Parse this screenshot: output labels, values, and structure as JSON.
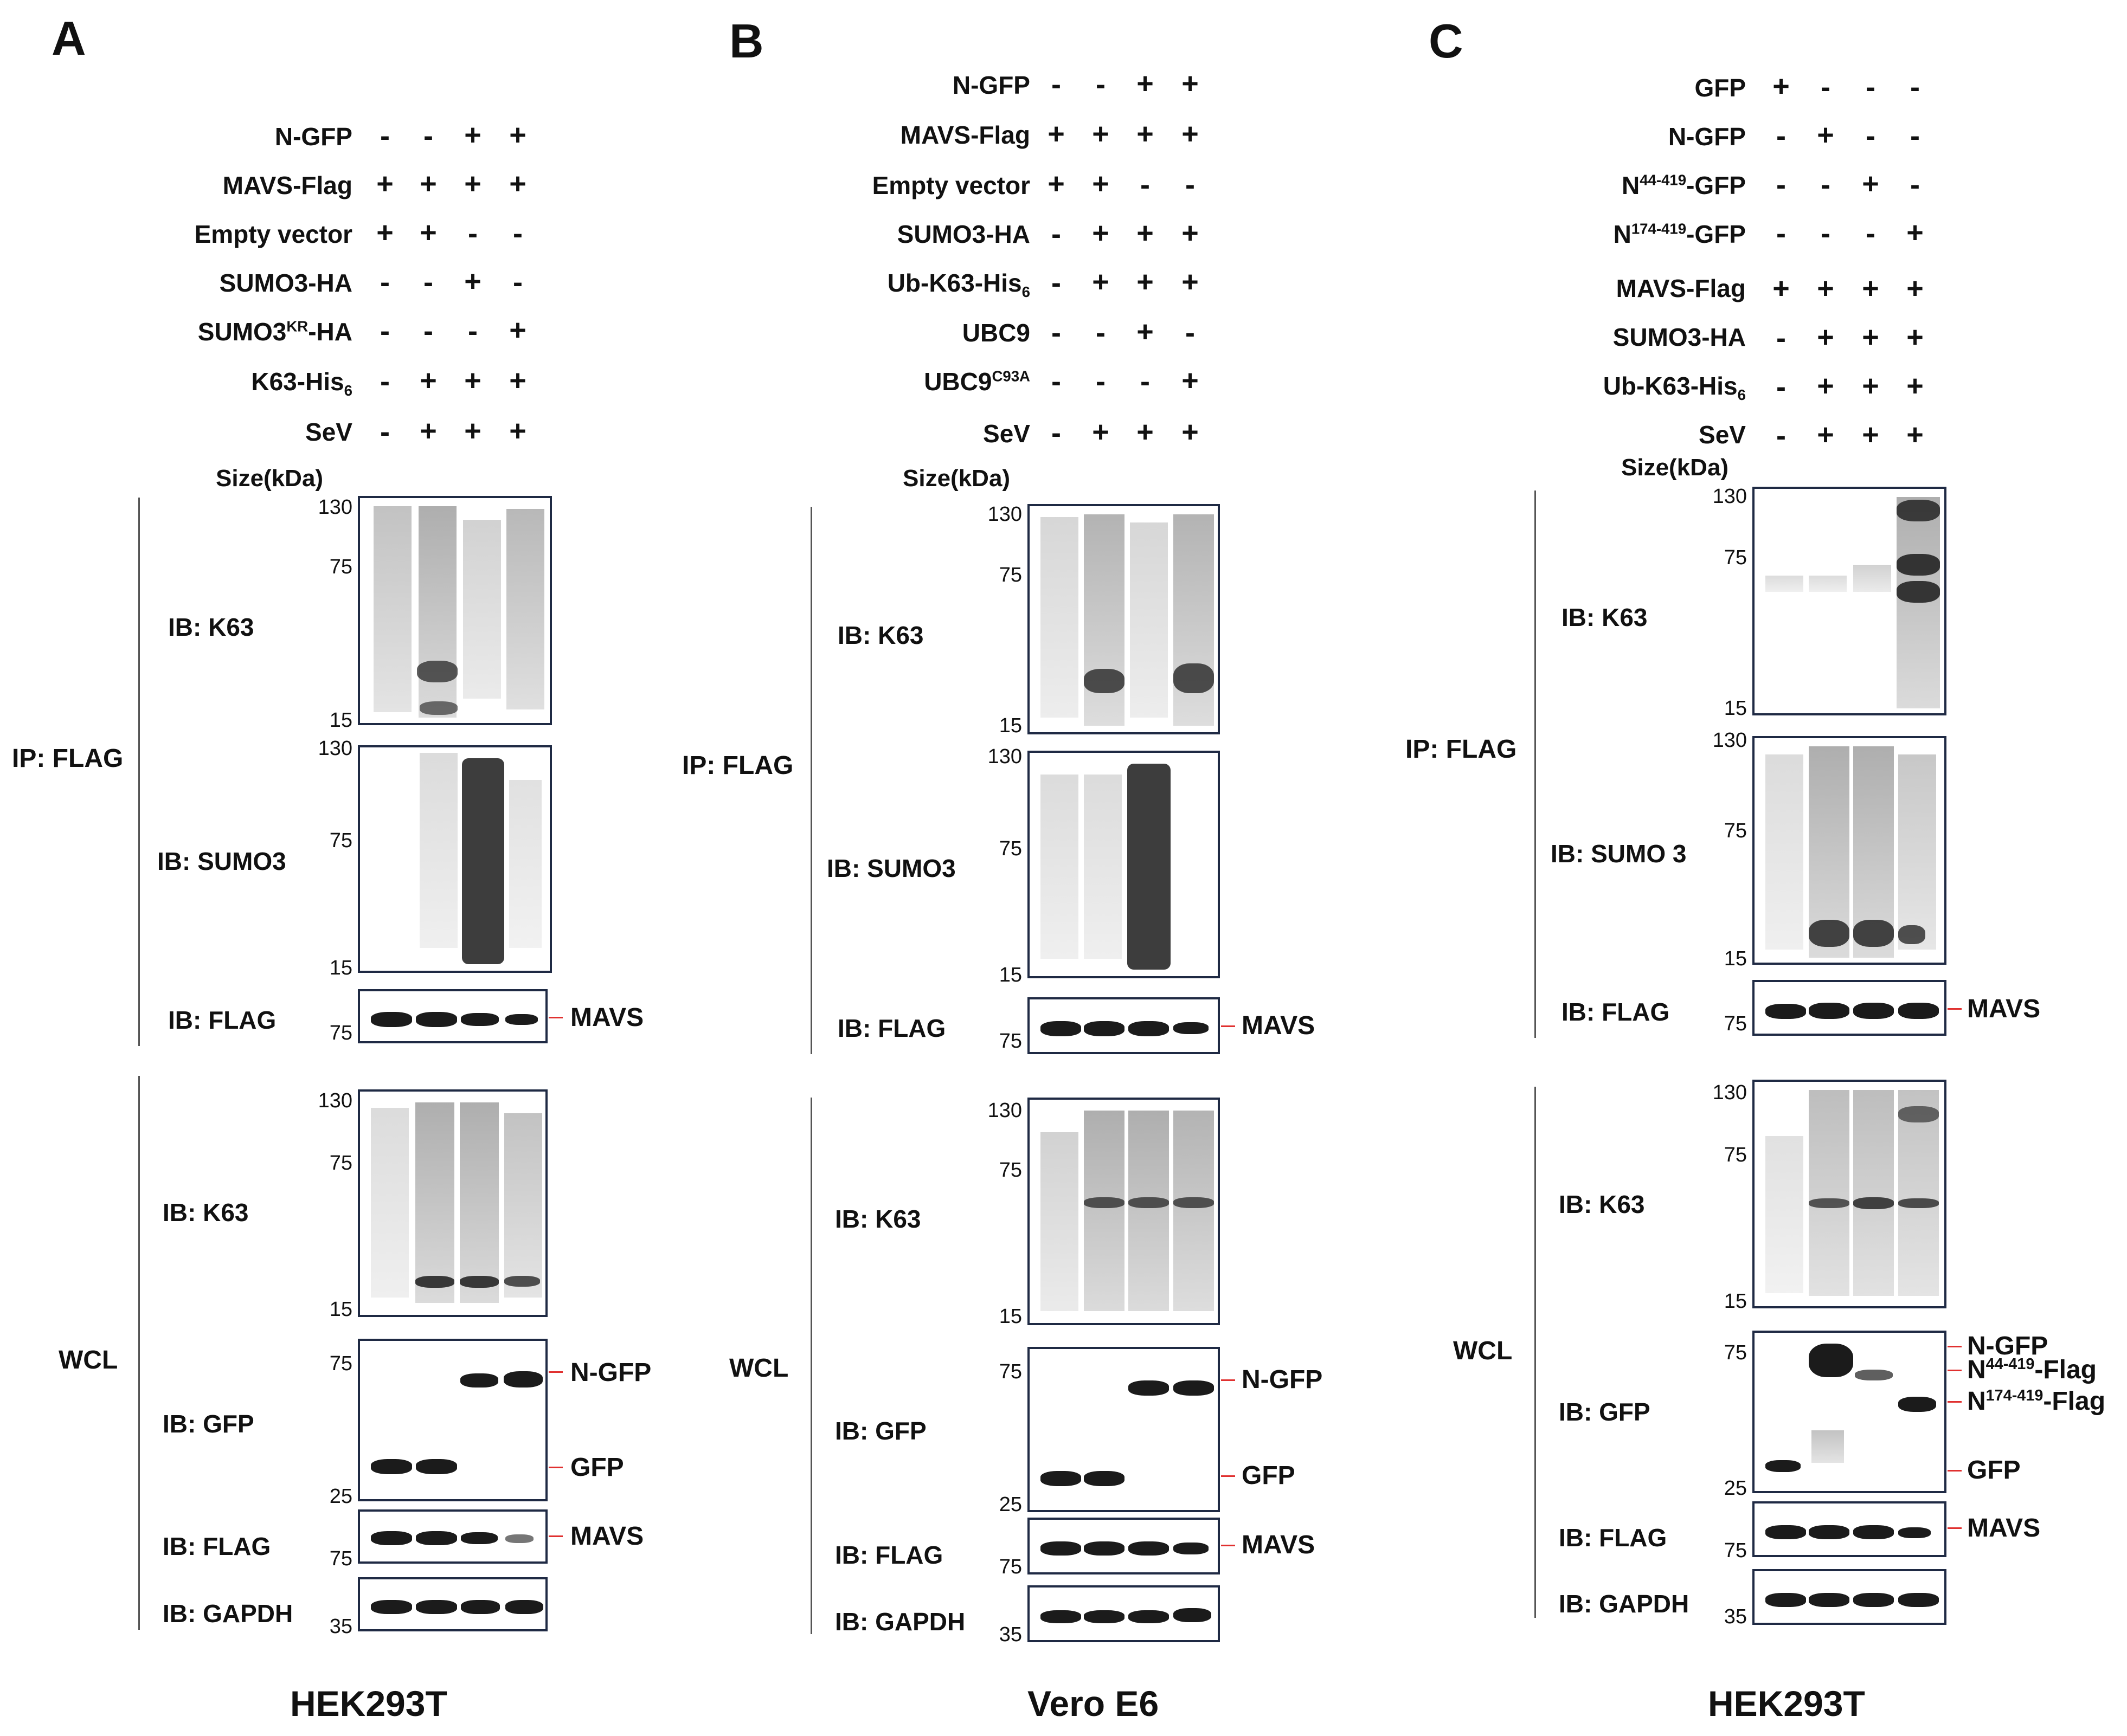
{
  "panels": {
    "A": {
      "letter": "A",
      "cell_line": "HEK293T",
      "conditions": [
        {
          "label": "N-GFP",
          "signs": [
            "-",
            "-",
            "+",
            "+"
          ]
        },
        {
          "label": "MAVS-Flag",
          "signs": [
            "+",
            "+",
            "+",
            "+"
          ]
        },
        {
          "label": "Empty vector",
          "signs": [
            "+",
            "+",
            "-",
            "-"
          ]
        },
        {
          "label": "SUMO3-HA",
          "signs": [
            "-",
            "-",
            "+",
            "-"
          ]
        },
        {
          "label": "SUMO3KR-HA",
          "signs": [
            "-",
            "-",
            "-",
            "+"
          ]
        },
        {
          "label": "K63-His6",
          "signs": [
            "-",
            "+",
            "+",
            "+"
          ]
        },
        {
          "label": "SeV",
          "signs": [
            "-",
            "+",
            "+",
            "+"
          ]
        }
      ],
      "size_title": "Size(kDa)",
      "ip_label": "IP: FLAG",
      "wcl_label": "WCL",
      "blots": [
        {
          "ib": "IB: K63",
          "mw": [
            "130",
            "75",
            "15"
          ]
        },
        {
          "ib": "IB: SUMO3",
          "mw": [
            "130",
            "75",
            "15"
          ]
        },
        {
          "ib": "IB: FLAG",
          "mw": [
            "75"
          ],
          "markers": [
            "MAVS"
          ]
        },
        {
          "ib": "IB: K63",
          "mw": [
            "130",
            "75",
            "15"
          ]
        },
        {
          "ib": "IB: GFP",
          "mw": [
            "75",
            "25"
          ],
          "markers": [
            "N-GFP",
            "GFP"
          ]
        },
        {
          "ib": "IB: FLAG",
          "mw": [
            "75"
          ],
          "markers": [
            "MAVS"
          ]
        },
        {
          "ib": "IB: GAPDH",
          "mw": [
            "35"
          ]
        }
      ]
    },
    "B": {
      "letter": "B",
      "cell_line": "Vero E6",
      "conditions": [
        {
          "label": "N-GFP",
          "signs": [
            "-",
            "-",
            "+",
            "+"
          ]
        },
        {
          "label": "MAVS-Flag",
          "signs": [
            "+",
            "+",
            "+",
            "+"
          ]
        },
        {
          "label": "Empty vector",
          "signs": [
            "+",
            "+",
            "-",
            "-"
          ]
        },
        {
          "label": "SUMO3-HA",
          "signs": [
            "-",
            "+",
            "+",
            "+"
          ]
        },
        {
          "label": "Ub-K63-His6",
          "signs": [
            "-",
            "+",
            "+",
            "+"
          ]
        },
        {
          "label": "UBC9",
          "signs": [
            "-",
            "-",
            "+",
            "-"
          ]
        },
        {
          "label": "UBC9C93A",
          "signs": [
            "-",
            "-",
            "-",
            "+"
          ]
        },
        {
          "label": "SeV",
          "signs": [
            "-",
            "+",
            "+",
            "+"
          ]
        }
      ],
      "size_title": "Size(kDa)",
      "ip_label": "IP: FLAG",
      "wcl_label": "WCL",
      "blots": [
        {
          "ib": "IB: K63",
          "mw": [
            "130",
            "75",
            "15"
          ]
        },
        {
          "ib": "IB: SUMO3",
          "mw": [
            "130",
            "75",
            "15"
          ]
        },
        {
          "ib": "IB: FLAG",
          "mw": [
            "75"
          ],
          "markers": [
            "MAVS"
          ]
        },
        {
          "ib": "IB: K63",
          "mw": [
            "130",
            "75",
            "15"
          ]
        },
        {
          "ib": "IB: GFP",
          "mw": [
            "75",
            "25"
          ],
          "markers": [
            "N-GFP",
            "GFP"
          ]
        },
        {
          "ib": "IB: FLAG",
          "mw": [
            "75"
          ],
          "markers": [
            "MAVS"
          ]
        },
        {
          "ib": "IB: GAPDH",
          "mw": [
            "35"
          ]
        }
      ]
    },
    "C": {
      "letter": "C",
      "cell_line": "HEK293T",
      "conditions": [
        {
          "label": "GFP",
          "signs": [
            "+",
            "-",
            "-",
            "-"
          ]
        },
        {
          "label": "N-GFP",
          "signs": [
            "-",
            "+",
            "-",
            "-"
          ]
        },
        {
          "label": "N44-419-GFP",
          "signs": [
            "-",
            "-",
            "+",
            "-"
          ]
        },
        {
          "label": "N174-419-GFP",
          "signs": [
            "-",
            "-",
            "-",
            "+"
          ]
        },
        {
          "label": "MAVS-Flag",
          "signs": [
            "+",
            "+",
            "+",
            "+"
          ]
        },
        {
          "label": "SUMO3-HA",
          "signs": [
            "-",
            "+",
            "+",
            "+"
          ]
        },
        {
          "label": "Ub-K63-His6",
          "signs": [
            "-",
            "+",
            "+",
            "+"
          ]
        },
        {
          "label": "SeV",
          "signs": [
            "-",
            "+",
            "+",
            "+"
          ]
        }
      ],
      "size_title": "Size(kDa)",
      "ip_label": "IP: FLAG",
      "wcl_label": "WCL",
      "blots": [
        {
          "ib": "IB: K63",
          "mw": [
            "130",
            "75",
            "15"
          ]
        },
        {
          "ib": "IB: SUMO 3",
          "mw": [
            "130",
            "75",
            "15"
          ]
        },
        {
          "ib": "IB: FLAG",
          "mw": [
            "75"
          ],
          "markers": [
            "MAVS"
          ]
        },
        {
          "ib": "IB: K63",
          "mw": [
            "130",
            "75",
            "15"
          ]
        },
        {
          "ib": "IB: GFP",
          "mw": [
            "75",
            "25"
          ],
          "markers": [
            "N-GFP",
            "N44-419-Flag",
            "N174-419-Flag",
            "GFP"
          ]
        },
        {
          "ib": "IB: FLAG",
          "mw": [
            "75"
          ],
          "markers": [
            "MAVS"
          ]
        },
        {
          "ib": "IB: GAPDH",
          "mw": [
            "35"
          ]
        }
      ]
    }
  }
}
